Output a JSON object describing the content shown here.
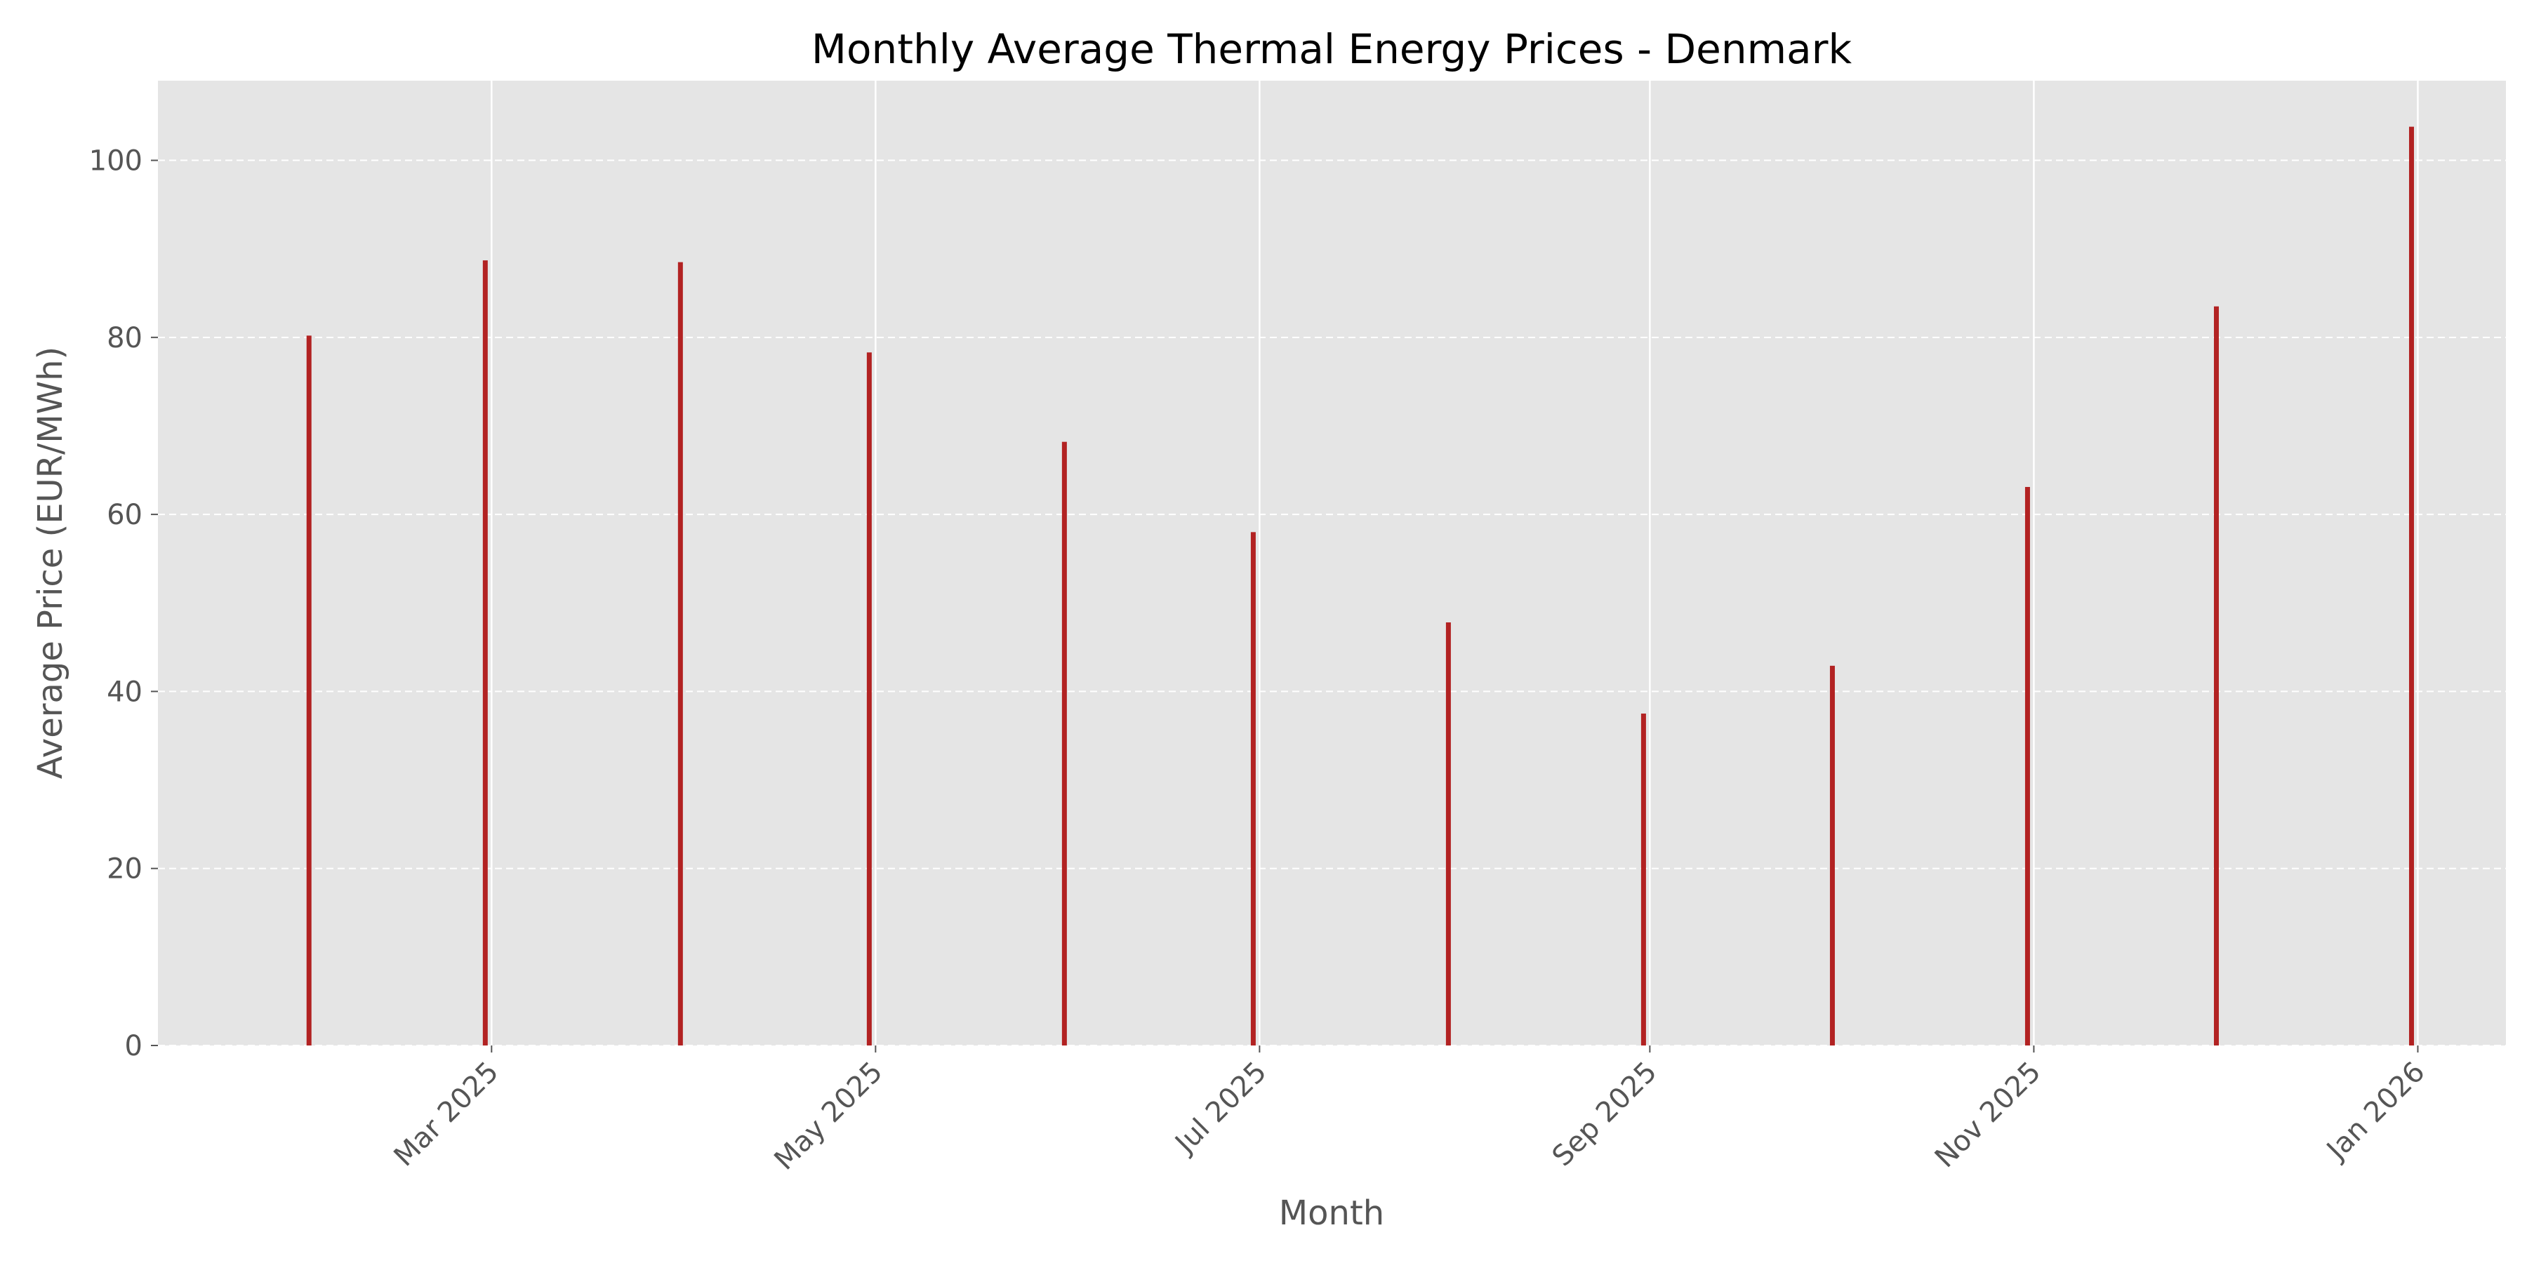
{
  "chart_data": {
    "type": "bar",
    "title": "Monthly Average Thermal Energy Prices - Denmark",
    "xlabel": "Month",
    "ylabel": "Average Price (EUR/MWh)",
    "categories": [
      "2025-01-31",
      "2025-02-28",
      "2025-03-31",
      "2025-04-30",
      "2025-05-31",
      "2025-06-30",
      "2025-07-31",
      "2025-08-31",
      "2025-09-30",
      "2025-10-31",
      "2025-11-30",
      "2025-12-31"
    ],
    "values": [
      80.2,
      88.7,
      88.5,
      78.3,
      68.2,
      58.0,
      47.8,
      37.5,
      42.9,
      63.1,
      83.5,
      103.8
    ],
    "ylim": [
      0,
      109
    ],
    "xlim": [
      "2025-01-07",
      "2026-01-15"
    ],
    "yticks": [
      0,
      20,
      40,
      60,
      80,
      100
    ],
    "xticks": [
      {
        "date": "2025-03-01",
        "label": "Mar 2025"
      },
      {
        "date": "2025-05-01",
        "label": "May 2025"
      },
      {
        "date": "2025-07-01",
        "label": "Jul 2025"
      },
      {
        "date": "2025-09-01",
        "label": "Sep 2025"
      },
      {
        "date": "2025-11-01",
        "label": "Nov 2025"
      },
      {
        "date": "2026-01-01",
        "label": "Jan 2026"
      }
    ],
    "grid": true,
    "colors": {
      "bar": "#b22222",
      "plot_background": "#e5e5e5",
      "grid": "#ffffff",
      "text": "#555555"
    }
  }
}
